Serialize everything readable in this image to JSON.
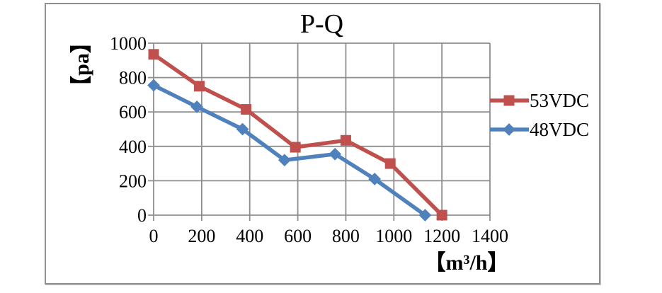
{
  "chart_data": {
    "type": "line",
    "title": "P-Q",
    "xlabel": "【m³/h】",
    "ylabel": "【pa】",
    "xlim": [
      0,
      1400
    ],
    "ylim": [
      0,
      1000
    ],
    "x_ticks": [
      0,
      200,
      400,
      600,
      800,
      1000,
      1200,
      1400
    ],
    "y_ticks": [
      0,
      200,
      400,
      600,
      800,
      1000
    ],
    "grid": true,
    "grid_color": "#8e8e8e",
    "legend_position": "right",
    "series": [
      {
        "name": "53VDC",
        "color": "#C0504D",
        "marker": "square",
        "points": [
          [
            0,
            935
          ],
          [
            190,
            750
          ],
          [
            385,
            615
          ],
          [
            590,
            395
          ],
          [
            800,
            435
          ],
          [
            985,
            300
          ],
          [
            1200,
            0
          ]
        ]
      },
      {
        "name": "48VDC",
        "color": "#4F81BD",
        "marker": "diamond",
        "points": [
          [
            0,
            755
          ],
          [
            180,
            630
          ],
          [
            370,
            500
          ],
          [
            545,
            320
          ],
          [
            755,
            355
          ],
          [
            920,
            210
          ],
          [
            1130,
            0
          ]
        ]
      }
    ]
  }
}
